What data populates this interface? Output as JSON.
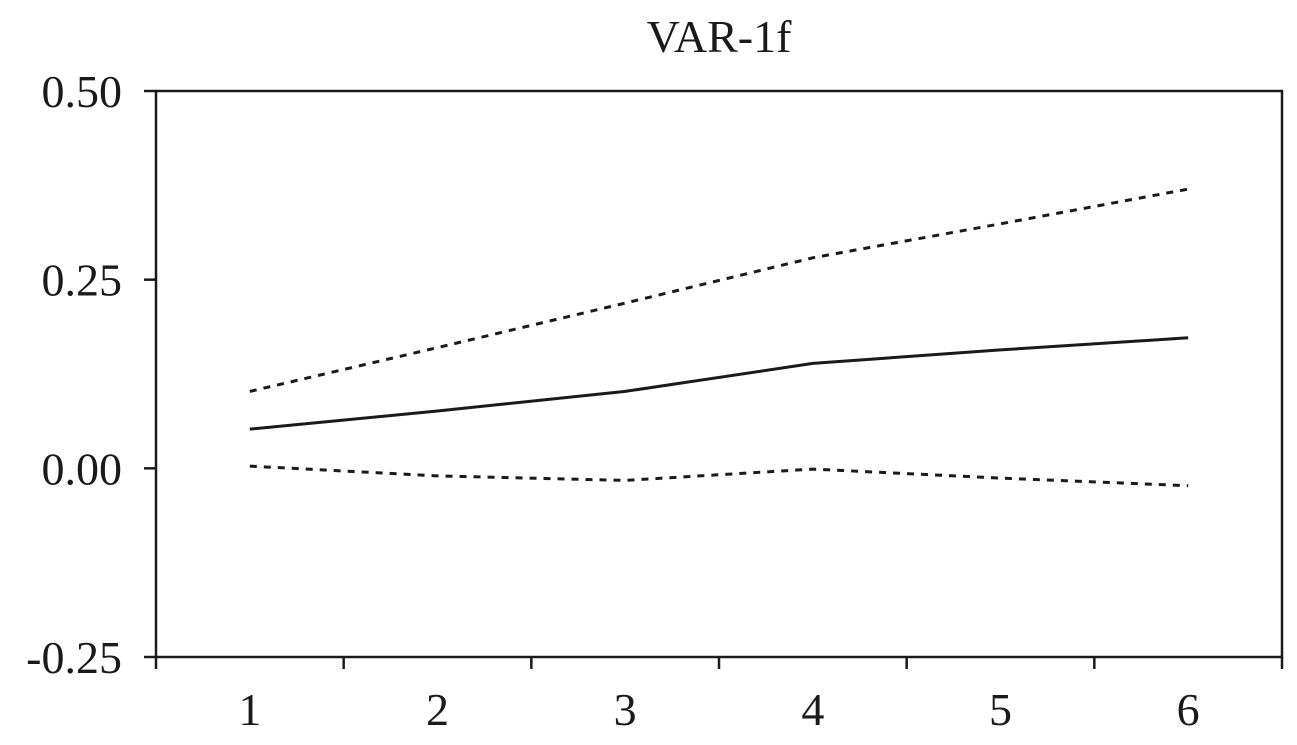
{
  "chart_data": {
    "type": "line",
    "title": "VAR-1f",
    "xlabel": "",
    "ylabel": "",
    "x": [
      1,
      2,
      3,
      4,
      5,
      6
    ],
    "xlim": [
      0.5,
      6.5
    ],
    "ylim": [
      -0.25,
      0.5
    ],
    "yticks": [
      "0.50",
      "0.25",
      "0.00",
      "-0.25"
    ],
    "ytick_values": [
      0.5,
      0.25,
      0.0,
      -0.25
    ],
    "xticks": [
      "1",
      "2",
      "3",
      "4",
      "5",
      "6"
    ],
    "grid": false,
    "series": [
      {
        "style": "solid",
        "color": "#1a1a1a",
        "values": [
          0.052,
          0.076,
          0.102,
          0.139,
          0.157,
          0.173
        ]
      },
      {
        "style": "dotted",
        "color": "#1a1a1a",
        "values": [
          0.102,
          0.16,
          0.219,
          0.279,
          0.324,
          0.37
        ]
      },
      {
        "style": "dotted",
        "color": "#1a1a1a",
        "values": [
          0.003,
          -0.01,
          -0.016,
          -0.001,
          -0.013,
          -0.023
        ]
      }
    ]
  }
}
